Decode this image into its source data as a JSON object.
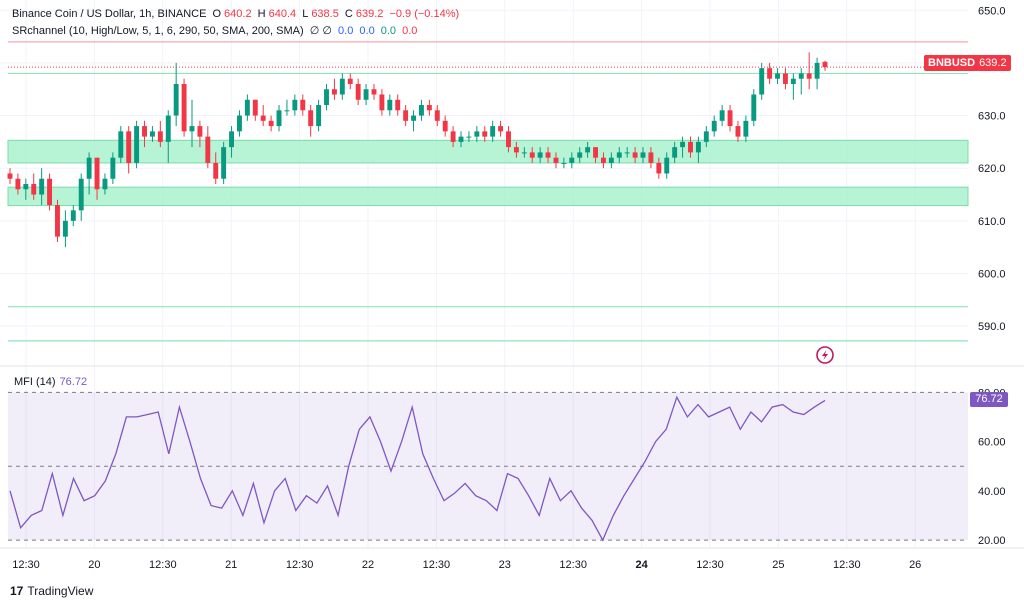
{
  "header": {
    "symbol": "Binance Coin / US Dollar, 1h, BINANCE",
    "open_label": "O",
    "open": "640.2",
    "high_label": "H",
    "high": "640.4",
    "low_label": "L",
    "low": "638.5",
    "close_label": "C",
    "close": "639.2",
    "change": "−0.9 (−0.14%)",
    "indicator": "SRchannel (10, High/Low, 5, 1, 6, 290, 50, SMA, 200, SMA)",
    "indicator_symbols": "∅  ∅",
    "indicator_values": [
      "0.0",
      "0.0",
      "0.0",
      "0.0"
    ]
  },
  "price_tag": {
    "symbol": "BNBUSD",
    "value": "639.2"
  },
  "mfi": {
    "label": "MFI (14)",
    "value": "76.72"
  },
  "branding": {
    "logo_text": "TradingView",
    "logo_mark": "17"
  },
  "colors": {
    "up": "#089981",
    "down": "#f23645",
    "mfi": "#7e57c2",
    "zone": "#9ff0c8"
  },
  "chart_data": [
    {
      "type": "candlestick",
      "title": "Binance Coin / US Dollar, 1h, BINANCE",
      "ylim": [
        583,
        651
      ],
      "y_ticks": [
        "650.0",
        "640.0",
        "630.0",
        "620.0",
        "610.0",
        "600.0",
        "590.0"
      ],
      "x_ticks": [
        "12:30",
        "20",
        "12:30",
        "21",
        "12:30",
        "22",
        "12:30",
        "23",
        "12:30",
        "24",
        "12:30",
        "25",
        "12:30",
        "26"
      ],
      "sr_zones": [
        [
          621.0,
          625.3
        ],
        [
          612.9,
          616.4
        ]
      ],
      "sr_lines": [
        644.0,
        638.0,
        593.7,
        587.2
      ],
      "ohlc": [
        [
          619.0,
          620.0,
          617.0,
          618.0
        ],
        [
          618.0,
          619.0,
          615.0,
          616.0
        ],
        [
          616.0,
          618.0,
          614.0,
          617.0
        ],
        [
          617.0,
          619.0,
          614.0,
          615.0
        ],
        [
          615.0,
          620.0,
          613.0,
          618.0
        ],
        [
          618.0,
          619.0,
          612.0,
          613.0
        ],
        [
          613.0,
          614.0,
          606.0,
          607.0
        ],
        [
          607.0,
          612.0,
          605.0,
          610.0
        ],
        [
          610.0,
          613.0,
          609.0,
          612.0
        ],
        [
          612.0,
          619.0,
          610.0,
          618.0
        ],
        [
          618.0,
          623.0,
          615.0,
          622.0
        ],
        [
          622.0,
          622.0,
          614.0,
          616.0
        ],
        [
          616.0,
          619.0,
          615.0,
          618.0
        ],
        [
          618.0,
          623.0,
          617.0,
          622.0
        ],
        [
          622.0,
          628.0,
          621.0,
          627.0
        ],
        [
          627.0,
          628.0,
          619.0,
          621.0
        ],
        [
          621.0,
          629.0,
          620.0,
          628.0
        ],
        [
          628.0,
          629.0,
          624.0,
          626.0
        ],
        [
          626.0,
          628.0,
          625.0,
          627.0
        ],
        [
          627.0,
          629.0,
          624.0,
          625.0
        ],
        [
          625.0,
          631.0,
          621.0,
          630.0
        ],
        [
          630.0,
          640.0,
          628.0,
          636.0
        ],
        [
          636.0,
          637.0,
          626.0,
          627.0
        ],
        [
          627.0,
          633.0,
          624.0,
          628.0
        ],
        [
          628.0,
          629.0,
          624.0,
          626.0
        ],
        [
          626.0,
          628.0,
          620.0,
          621.0
        ],
        [
          621.0,
          623.0,
          617.0,
          618.0
        ],
        [
          618.0,
          625.0,
          617.0,
          624.0
        ],
        [
          624.0,
          628.0,
          622.0,
          627.0
        ],
        [
          627.0,
          631.0,
          626.0,
          630.0
        ],
        [
          630.0,
          634.0,
          629.0,
          633.0
        ],
        [
          633.0,
          633.0,
          629.0,
          630.0
        ],
        [
          630.0,
          632.0,
          628.0,
          629.0
        ],
        [
          629.0,
          630.0,
          627.0,
          628.0
        ],
        [
          628.0,
          632.0,
          627.0,
          631.0
        ],
        [
          631.0,
          633.0,
          630.0,
          631.0
        ],
        [
          631.0,
          634.0,
          630.0,
          633.0
        ],
        [
          633.0,
          634.0,
          630.0,
          631.0
        ],
        [
          631.0,
          632.0,
          626.0,
          628.0
        ],
        [
          628.0,
          633.0,
          627.0,
          632.0
        ],
        [
          632.0,
          636.0,
          631.0,
          635.0
        ],
        [
          635.0,
          637.0,
          633.0,
          634.0
        ],
        [
          634.0,
          638.0,
          633.0,
          637.0
        ],
        [
          637.0,
          638.0,
          635.0,
          636.0
        ],
        [
          636.0,
          637.0,
          632.0,
          633.0
        ],
        [
          633.0,
          636.0,
          632.0,
          635.0
        ],
        [
          635.0,
          636.0,
          633.0,
          634.0
        ],
        [
          634.0,
          635.0,
          630.0,
          631.0
        ],
        [
          631.0,
          634.0,
          630.0,
          633.0
        ],
        [
          633.0,
          634.0,
          630.0,
          631.0
        ],
        [
          631.0,
          632.0,
          628.0,
          629.0
        ],
        [
          629.0,
          631.0,
          627.0,
          630.0
        ],
        [
          630.0,
          633.0,
          629.0,
          632.0
        ],
        [
          632.0,
          633.0,
          630.0,
          631.0
        ],
        [
          631.0,
          632.0,
          628.0,
          629.0
        ],
        [
          629.0,
          630.0,
          626.0,
          627.0
        ],
        [
          627.0,
          628.0,
          624.0,
          625.0
        ],
        [
          625.0,
          627.0,
          624.0,
          626.0
        ],
        [
          626.0,
          627.0,
          625.0,
          626.0
        ],
        [
          626.0,
          628.0,
          625.0,
          627.0
        ],
        [
          627.0,
          628.0,
          625.0,
          626.0
        ],
        [
          626.0,
          629.0,
          625.0,
          628.0
        ],
        [
          628.0,
          629.0,
          626.0,
          627.0
        ],
        [
          627.0,
          628.0,
          623.0,
          624.0
        ],
        [
          624.0,
          625.0,
          622.0,
          623.0
        ],
        [
          623.0,
          624.0,
          622.0,
          623.0
        ],
        [
          623.0,
          624.0,
          621.0,
          622.0
        ],
        [
          622.0,
          624.0,
          621.0,
          623.0
        ],
        [
          623.0,
          624.0,
          621.0,
          622.0
        ],
        [
          622.0,
          623.0,
          620.0,
          621.0
        ],
        [
          621.0,
          622.0,
          620.0,
          621.0
        ],
        [
          621.0,
          623.0,
          620.0,
          622.0
        ],
        [
          622.0,
          624.0,
          621.0,
          623.0
        ],
        [
          623.0,
          625.0,
          622.0,
          624.0
        ],
        [
          624.0,
          624.0,
          621.0,
          622.0
        ],
        [
          622.0,
          623.0,
          620.0,
          621.0
        ],
        [
          621.0,
          623.0,
          620.0,
          622.0
        ],
        [
          622.0,
          624.0,
          621.0,
          623.0
        ],
        [
          623.0,
          624.0,
          622.0,
          623.0
        ],
        [
          623.0,
          624.0,
          621.0,
          622.0
        ],
        [
          622.0,
          624.0,
          621.0,
          623.0
        ],
        [
          623.0,
          624.0,
          620.0,
          621.0
        ],
        [
          621.0,
          622.0,
          618.0,
          619.0
        ],
        [
          619.0,
          623.0,
          618.0,
          622.0
        ],
        [
          622.0,
          625.0,
          621.0,
          624.0
        ],
        [
          624.0,
          626.0,
          622.0,
          625.0
        ],
        [
          625.0,
          626.0,
          622.0,
          623.0
        ],
        [
          623.0,
          626.0,
          621.0,
          625.0
        ],
        [
          625.0,
          628.0,
          624.0,
          627.0
        ],
        [
          627.0,
          630.0,
          626.0,
          629.0
        ],
        [
          629.0,
          632.0,
          628.0,
          631.0
        ],
        [
          631.0,
          632.0,
          627.0,
          628.0
        ],
        [
          628.0,
          629.0,
          625.0,
          626.0
        ],
        [
          626.0,
          630.0,
          625.0,
          629.0
        ],
        [
          629.0,
          635.0,
          628.0,
          634.0
        ],
        [
          634.0,
          640.0,
          633.0,
          639.0
        ],
        [
          639.0,
          640.0,
          636.0,
          637.0
        ],
        [
          637.0,
          639.0,
          636.0,
          638.0
        ],
        [
          638.0,
          639.0,
          635.0,
          636.0
        ],
        [
          636.0,
          638.0,
          633.0,
          637.0
        ],
        [
          637.0,
          639.0,
          634.0,
          638.0
        ],
        [
          638.0,
          642.0,
          635.0,
          637.0
        ],
        [
          637.0,
          641.0,
          635.0,
          640.0
        ],
        [
          640.2,
          640.4,
          638.5,
          639.2
        ]
      ]
    },
    {
      "type": "line",
      "title": "MFI (14)",
      "ylim": [
        18,
        85
      ],
      "y_ticks": [
        "80.00",
        "60.00",
        "40.00",
        "20.00"
      ],
      "bands": [
        80,
        50,
        20
      ],
      "series": [
        {
          "name": "MFI (14)",
          "values": [
            40,
            25,
            30,
            32,
            47,
            30,
            45,
            36,
            38,
            44,
            55,
            70,
            70,
            71,
            72,
            55,
            74,
            60,
            45,
            34,
            33,
            40,
            30,
            43,
            27,
            40,
            45,
            32,
            38,
            35,
            42,
            30,
            50,
            65,
            70,
            60,
            48,
            60,
            74,
            55,
            45,
            36,
            39,
            43,
            38,
            36,
            32,
            47,
            45,
            38,
            30,
            45,
            36,
            40,
            33,
            28,
            20,
            30,
            38,
            45,
            52,
            60,
            65,
            78,
            70,
            75,
            70,
            72,
            74,
            65,
            72,
            68,
            74,
            75,
            72,
            71,
            74,
            76.72
          ]
        }
      ]
    }
  ]
}
